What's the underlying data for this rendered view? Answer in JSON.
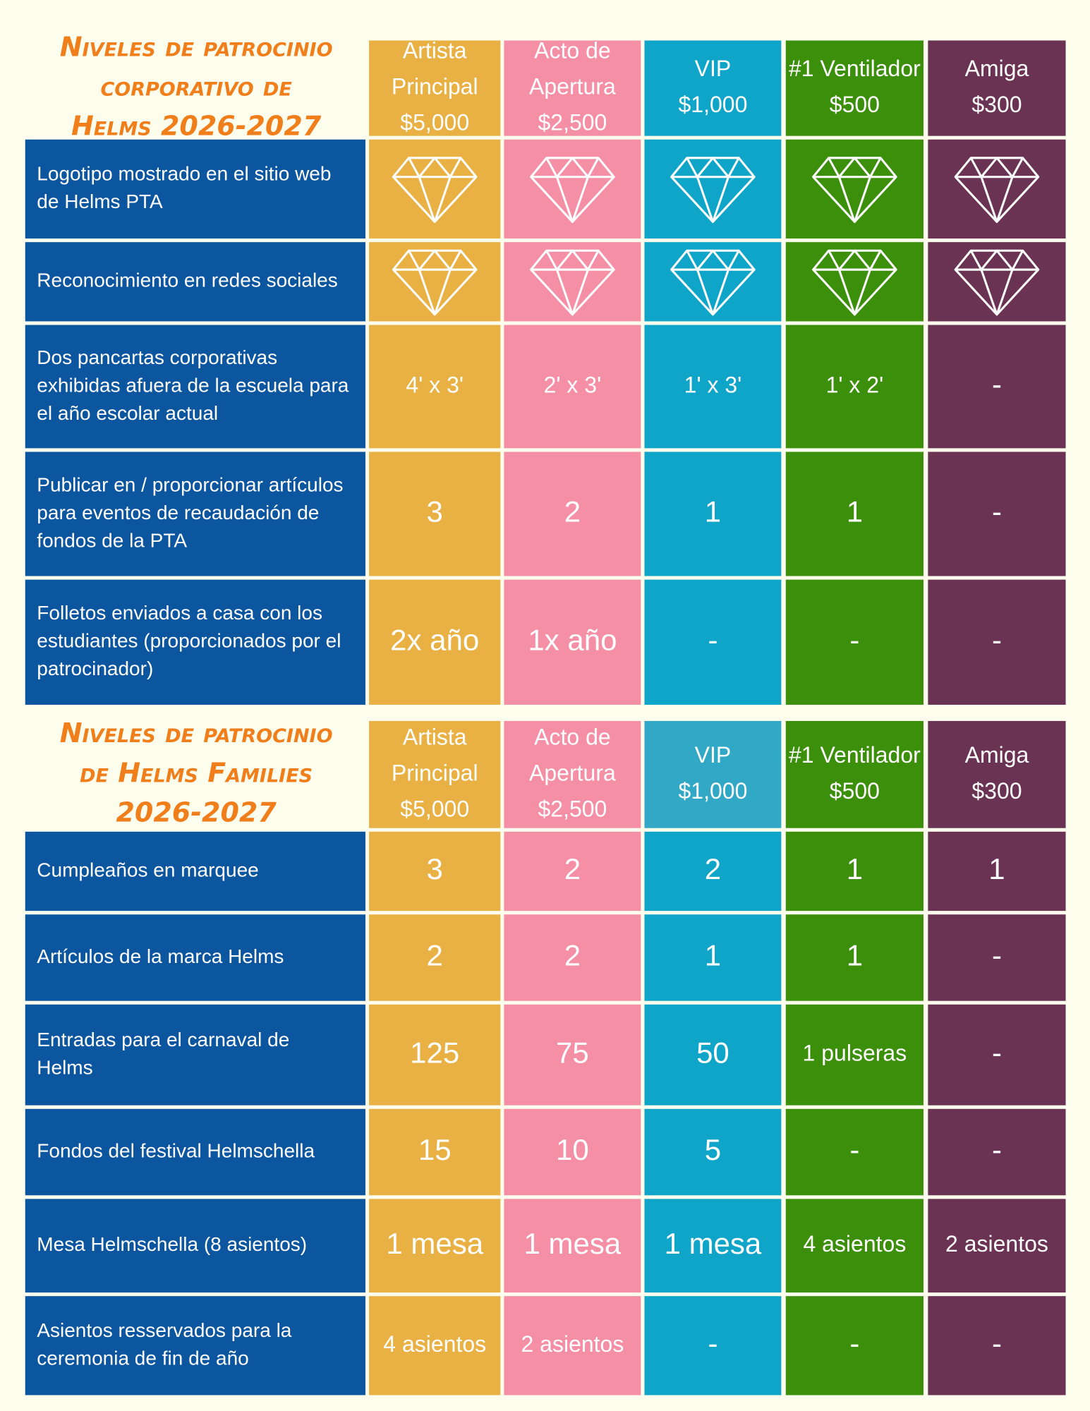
{
  "tables": [
    {
      "title": [
        "Niveles de patrocinio",
        "corporativo de",
        "Helms 2026-2027"
      ],
      "columns": [
        [
          "Artista",
          "Principal",
          "$5,000"
        ],
        [
          "Acto de",
          "Apertura",
          "$2,500"
        ],
        [
          "VIP",
          "$1,000"
        ],
        [
          "#1 Ventilador",
          "$500"
        ],
        [
          "Amiga",
          "$300"
        ]
      ],
      "rows": [
        {
          "label": [
            "Logotipo mostrado en el sitio web",
            "de Helms PTA"
          ],
          "cells": [
            null,
            null,
            null,
            null,
            null
          ]
        },
        {
          "label": [
            "Reconocimiento en redes sociales"
          ],
          "cells": [
            null,
            null,
            null,
            null,
            null
          ]
        },
        {
          "label": [
            "Dos pancartas corporativas",
            "exhibidas afuera de la escuela para",
            "el año escolar actual"
          ],
          "cells": [
            "4' x 3'",
            "2' x 3'",
            "1' x 3'",
            "1' x 2'",
            "-"
          ]
        },
        {
          "label": [
            "Publicar en / proporcionar artículos",
            "para eventos de recaudación de",
            "fondos de la PTA"
          ],
          "cells": [
            "3",
            "2",
            "1",
            "1",
            "-"
          ]
        },
        {
          "label": [
            "Folletos enviados a casa con los",
            "estudiantes (proporcionados por el",
            "patrocinador)"
          ],
          "cells": [
            "2x año",
            "1x año",
            "-",
            "-",
            "-"
          ]
        }
      ]
    },
    {
      "title": [
        "Niveles de patrocinio",
        "de Helms Families",
        "2026-2027"
      ],
      "columns": [
        [
          "Artista",
          "Principal",
          "$5,000"
        ],
        [
          "Acto de",
          "Apertura",
          "$2,500"
        ],
        [
          "VIP",
          "$1,000"
        ],
        [
          "#1 Ventilador",
          "$500"
        ],
        [
          "Amiga",
          "$300"
        ]
      ],
      "rows": [
        {
          "label": [
            "Cumpleaños en marquee"
          ],
          "cells": [
            "3",
            "2",
            "2",
            "1",
            "1"
          ]
        },
        {
          "label": [
            "Artículos de la marca Helms"
          ],
          "cells": [
            "2",
            "2",
            "1",
            "1",
            "-"
          ]
        },
        {
          "label": [
            "Entradas para el carnaval de",
            "Helms"
          ],
          "cells": [
            "125",
            "75",
            "50",
            "1 pulseras",
            "-"
          ]
        },
        {
          "label": [
            "Fondos del festival Helmschella"
          ],
          "cells": [
            "15",
            "10",
            "5",
            "-",
            "-"
          ]
        },
        {
          "label": [
            "Mesa Helmschella (8 asientos)"
          ],
          "cells": [
            "1 mesa",
            "1 mesa",
            "1 mesa",
            "4 asientos",
            "2 asientos"
          ]
        },
        {
          "label": [
            "Asientos resservados para la",
            "ceremonia de fin de año"
          ],
          "cells": [
            "4 asientos",
            "2 asientos",
            "-",
            "-",
            "-"
          ]
        }
      ]
    }
  ]
}
